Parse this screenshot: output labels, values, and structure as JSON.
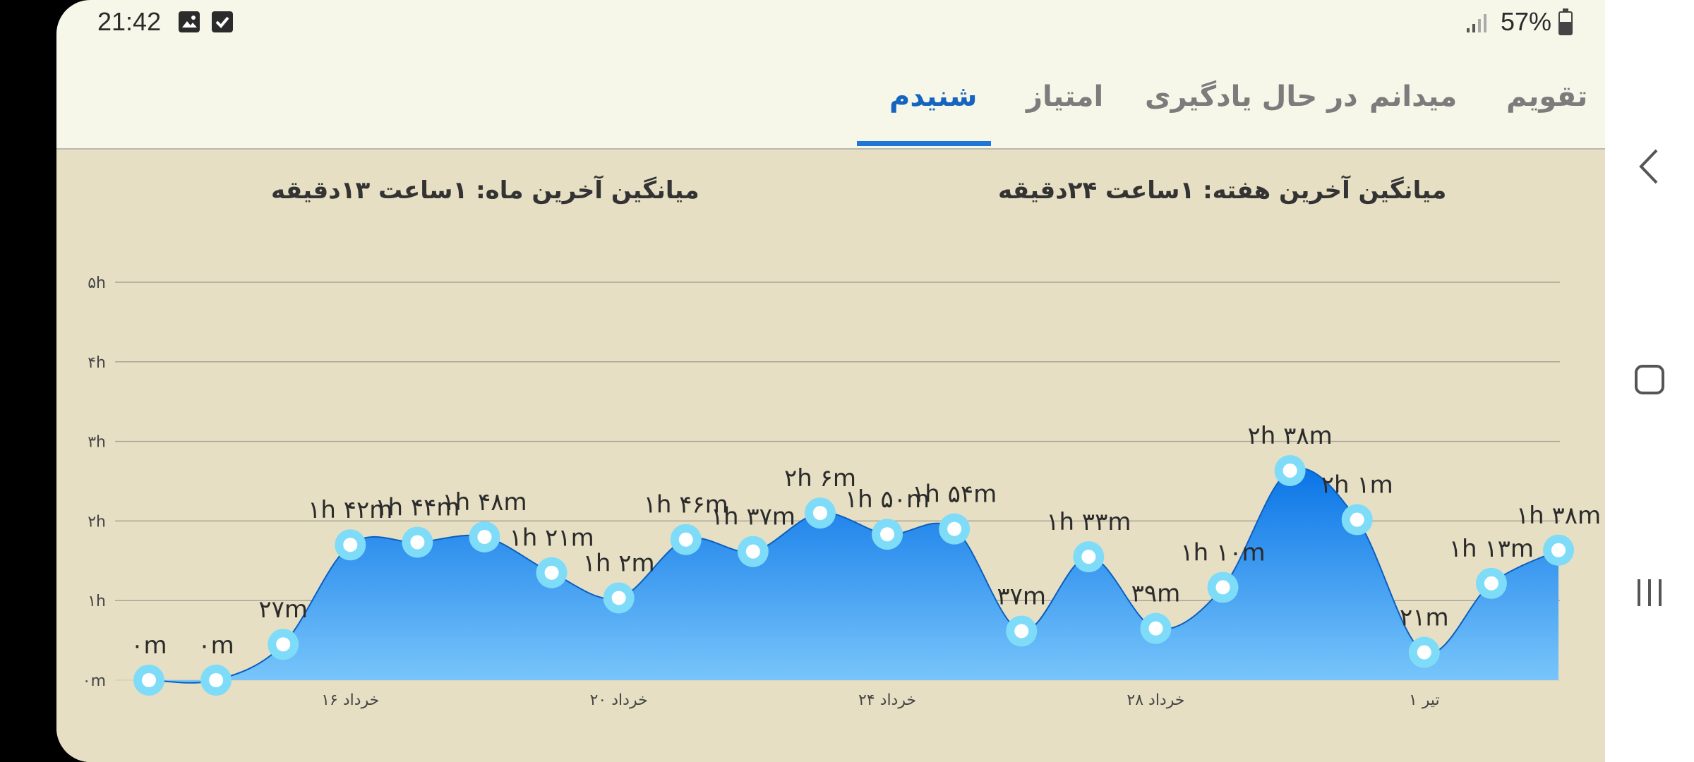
{
  "status_bar": {
    "time": "21:42",
    "battery_percent": "57%",
    "icons": [
      "image-notification-icon",
      "check-notification-icon",
      "signal-icon",
      "battery-icon"
    ]
  },
  "tabs": [
    {
      "label": "تقویم",
      "active": false
    },
    {
      "label": "میدانم",
      "active": false
    },
    {
      "label": "در حال یادگیری",
      "active": false
    },
    {
      "label": "امتیاز",
      "active": false
    },
    {
      "label": "شنیدم",
      "active": true
    }
  ],
  "averages": {
    "week": "میانگین آخرین هفته: ۱ساعت  ۲۴دقیقه",
    "month": "میانگین آخرین ماه: ۱ساعت  ۱۳دقیقه"
  },
  "colors": {
    "accent": "#1e77d6",
    "area_top": "#0a74e6",
    "area_bottom": "#79c6fb",
    "marker_ring": "#7fdcf9",
    "background": "#e6dfc4"
  },
  "chart_data": {
    "type": "area",
    "y_ticks": [
      "۰m",
      "۱h",
      "۲h",
      "۳h",
      "۴h",
      "۵h"
    ],
    "ylim": [
      0,
      300
    ],
    "x_tick_labels": [
      {
        "index": 3,
        "label": "۱۶ خرداد"
      },
      {
        "index": 7,
        "label": "۲۰ خرداد"
      },
      {
        "index": 11,
        "label": "۲۴ خرداد"
      },
      {
        "index": 15,
        "label": "۲۸ خرداد"
      },
      {
        "index": 19,
        "label": "۱ تیر"
      }
    ],
    "values": [
      0,
      0,
      27,
      102,
      104,
      108,
      81,
      62,
      106,
      97,
      126,
      110,
      114,
      37,
      93,
      39,
      70,
      158,
      121,
      21,
      73,
      98
    ],
    "labels": [
      "۰m",
      "۰m",
      "۲۷m",
      "۱h ۴۲m",
      "۱h ۴۴m",
      "۱h ۴۸m",
      "۱h ۲۱m",
      "۱h ۲m",
      "۱h ۴۶m",
      "۱h ۳۷m",
      "۲h ۶m",
      "۱h ۵۰m",
      "۱h ۵۴m",
      "۳۷m",
      "۱h ۳۳m",
      "۳۹m",
      "۱h ۱۰m",
      "۲h ۳۸m",
      "۲h ۱m",
      "۲۱m",
      "۱h ۱۳m",
      "۱h ۳۸m"
    ],
    "grid": true
  },
  "nav": {
    "back": "back-icon",
    "home": "home-icon",
    "recents": "recents-icon"
  }
}
